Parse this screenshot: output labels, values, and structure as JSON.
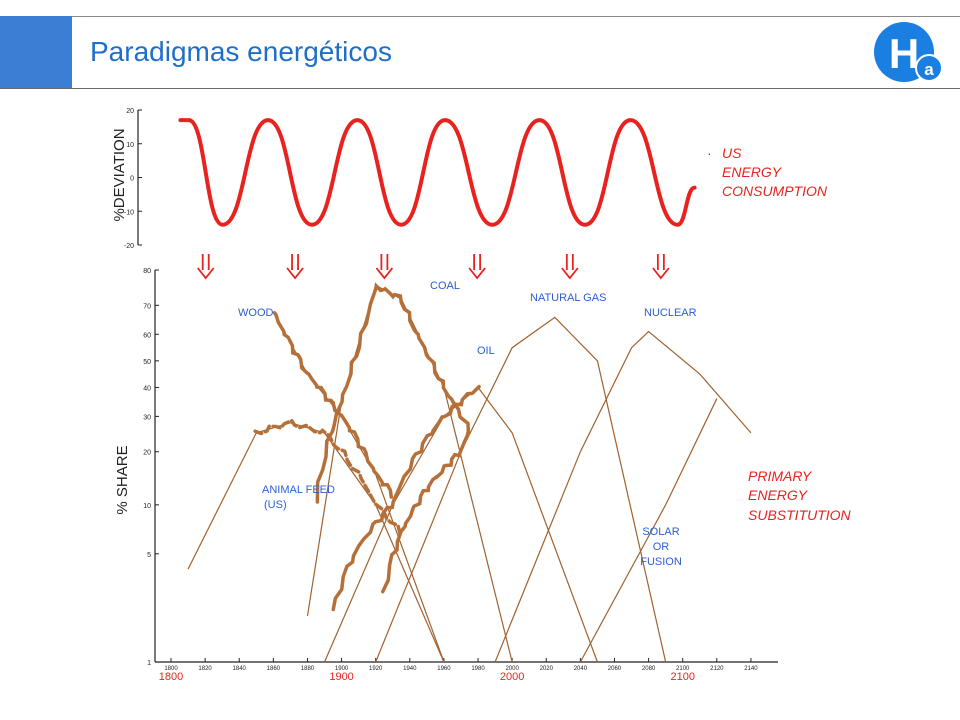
{
  "slide": {
    "title": "Paradigmas energéticos"
  },
  "logo": {
    "letter": "H",
    "subscript": "a",
    "color": "#1a7fe0"
  },
  "colors": {
    "accent": "#3b7fd4",
    "deviation_curve": "#e8231f",
    "share_curve": "#a0612e",
    "historical_data": "#b5703a",
    "blue_labels": "#2b5fd0",
    "red_labels": "#e8231f"
  },
  "chart_data": [
    {
      "type": "line",
      "ylabel": "%DEVIATION",
      "yticks": [
        "20",
        "10",
        "0",
        "-10",
        "-20"
      ],
      "ylim": [
        -20,
        20
      ],
      "xlim": [
        1800,
        2150
      ],
      "series": [
        {
          "name": "US ENERGY CONSUMPTION",
          "x": [
            1805,
            1810,
            1830,
            1857,
            1883,
            1910,
            1936,
            1962,
            1990,
            2018,
            2045,
            2072,
            2100,
            2110
          ],
          "y": [
            17,
            17,
            -14,
            17,
            -14,
            17,
            -14,
            17,
            -14,
            17,
            -14,
            17,
            -14,
            -3
          ]
        }
      ],
      "label": "US ENERGY CONSUMPTION",
      "arrows_at": [
        1820,
        1873,
        1926,
        1981,
        2036,
        2090
      ]
    },
    {
      "type": "line",
      "ylabel": "% SHARE",
      "yscale": "logit",
      "yticks": [
        "80",
        "70",
        "60",
        "50",
        "40",
        "30",
        "20",
        "10",
        "5",
        "1"
      ],
      "xlim": [
        1800,
        2150
      ],
      "xticks": [
        "1800",
        "1820",
        "1840",
        "1860",
        "1880",
        "1900",
        "1920",
        "1940",
        "1960",
        "1980",
        "2000",
        "2020",
        "2040",
        "2060",
        "2080",
        "2100",
        "2120",
        "2140"
      ],
      "xticks_highlight": [
        "1800",
        "1900",
        "2000",
        "2100"
      ],
      "series": [
        {
          "name": "WOOD",
          "x": [
            1860,
            1880,
            1900,
            1920,
            1960
          ],
          "y": [
            68,
            45,
            30,
            15,
            1
          ]
        },
        {
          "name": "ANIMAL FEED (US)",
          "x": [
            1810,
            1850,
            1870,
            1890,
            1920,
            1960
          ],
          "y": [
            4,
            25,
            28,
            25,
            10,
            1
          ]
        },
        {
          "name": "COAL",
          "x": [
            1880,
            1900,
            1920,
            1935,
            1960,
            2000
          ],
          "y": [
            2,
            35,
            76,
            72,
            40,
            1
          ]
        },
        {
          "name": "OIL",
          "x": [
            1890,
            1930,
            1960,
            1980,
            2000,
            2050
          ],
          "y": [
            1,
            10,
            30,
            40,
            25,
            1
          ]
        },
        {
          "name": "NATURAL GAS",
          "x": [
            1920,
            1970,
            2000,
            2025,
            2050,
            2090
          ],
          "y": [
            1,
            20,
            55,
            66,
            50,
            1
          ]
        },
        {
          "name": "NUCLEAR",
          "x": [
            1990,
            2040,
            2070,
            2080,
            2110,
            2140
          ],
          "y": [
            1,
            20,
            55,
            61,
            45,
            25
          ]
        },
        {
          "name": "SOLAR OR FUSION",
          "x": [
            2040,
            2090,
            2120
          ],
          "y": [
            1,
            10,
            36
          ]
        }
      ],
      "labels": {
        "wood": "WOOD",
        "coal": "COAL",
        "oil": "OIL",
        "natural_gas": "NATURAL GAS",
        "nuclear": "NUCLEAR",
        "animal_feed": [
          "ANIMAL FEED",
          "(US)"
        ],
        "solar": [
          "SOLAR",
          "OR",
          "FUSION"
        ]
      },
      "annotation": [
        "PRIMARY",
        "ENERGY",
        "SUBSTITUTION"
      ]
    }
  ],
  "top_annotation": [
    "US",
    "ENERGY",
    "CONSUMPTION"
  ]
}
